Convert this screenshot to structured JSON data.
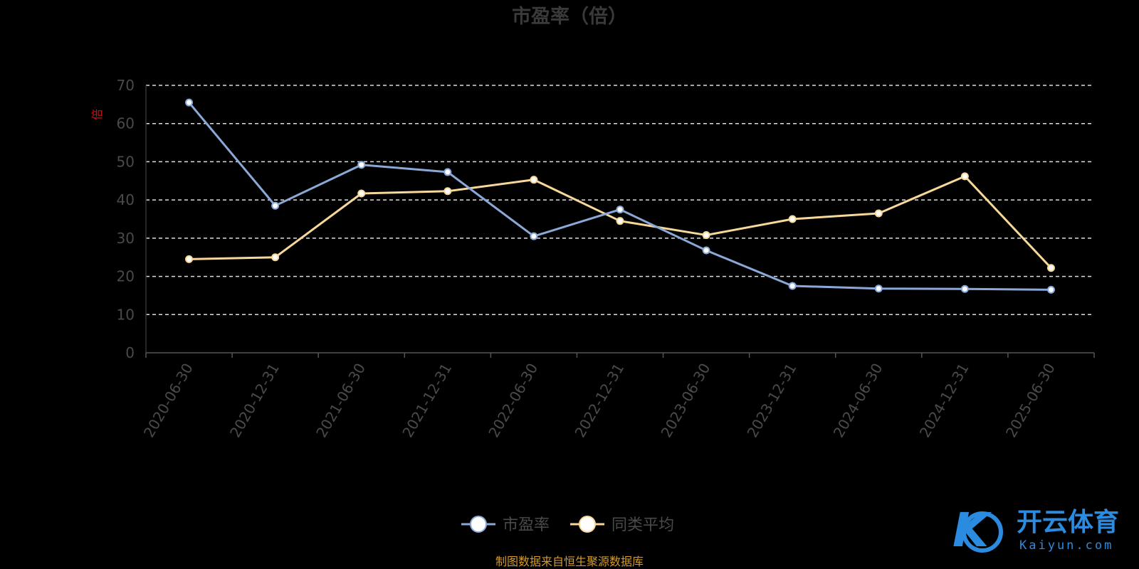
{
  "chart_data": {
    "type": "line",
    "title": "市盈率（倍）",
    "ylabel": "倍",
    "ylim": [
      0,
      70
    ],
    "yticks": [
      0,
      10,
      20,
      30,
      40,
      50,
      60,
      70
    ],
    "grid": true,
    "legend_position": "bottom",
    "categories": [
      "2020-06-30",
      "2020-12-31",
      "2021-06-30",
      "2021-12-31",
      "2022-06-30",
      "2022-12-31",
      "2023-06-30",
      "2023-12-31",
      "2024-06-30",
      "2024-12-31",
      "2025-06-30"
    ],
    "series": [
      {
        "name": "市盈率",
        "color": "#8aa9d8",
        "values": [
          65.5,
          38.5,
          49.2,
          47.3,
          30.5,
          37.5,
          26.8,
          17.5,
          16.8,
          16.7,
          16.5
        ]
      },
      {
        "name": "同类平均",
        "color": "#f7d79a",
        "values": [
          24.5,
          25.0,
          41.7,
          42.3,
          45.3,
          34.5,
          30.8,
          35.0,
          36.5,
          46.2,
          22.2
        ]
      }
    ],
    "source_note": "制图数据来自恒生聚源数据库"
  },
  "watermark": {
    "brand_cn": "开云体育",
    "brand_en": "Kaiyun.com",
    "logo_letter": "K",
    "color": "#2b8be0"
  }
}
